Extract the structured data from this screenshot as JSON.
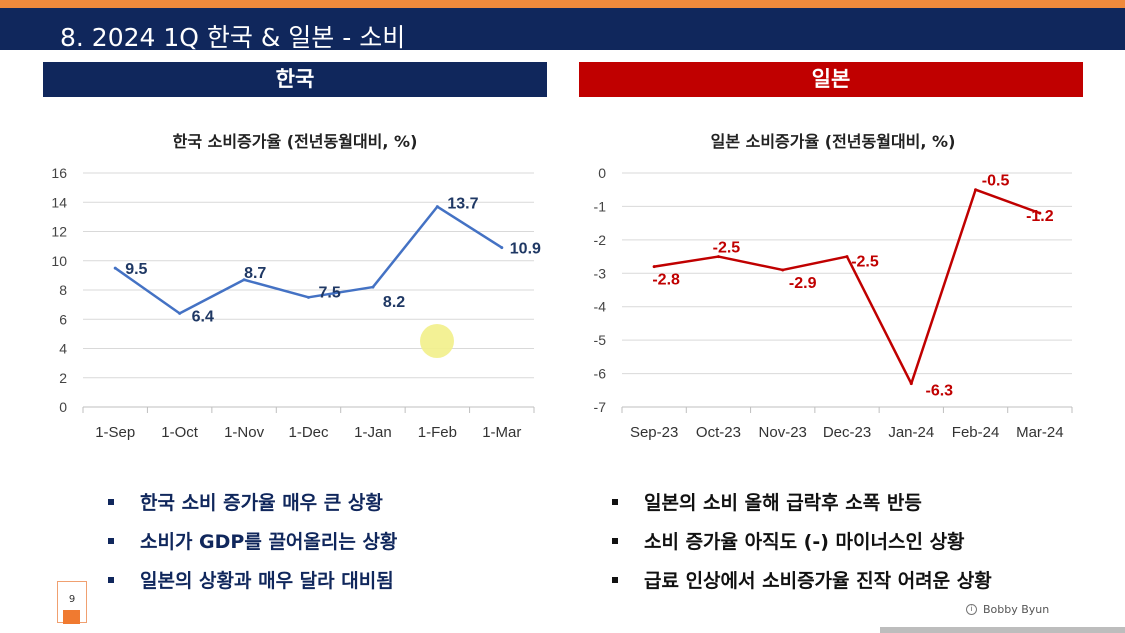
{
  "slide": {
    "title": "8.   2024 1Q 한국 & 일본 - 소비",
    "page_number": "9",
    "credit": "Bobby Byun",
    "colors": {
      "navy": "#10275c",
      "red": "#c00000",
      "orange": "#f08a3c",
      "korea_line": "#4472c4",
      "highlight": "#f2f08a"
    }
  },
  "korea": {
    "header": "한국",
    "bullets": [
      "한국 소비 증가율 매우 큰 상황",
      "소비가 GDP를 끌어올리는 상황",
      "일본의 상황과 매우 달라 대비됨"
    ]
  },
  "japan": {
    "header": "일본",
    "bullets": [
      "일본의 소비 올해 급락후 소폭 반등",
      "소비 증가율 아직도 (-) 마이너스인 상황",
      "급료 인상에서 소비증가율 진작 어려운 상황"
    ]
  },
  "chart_data": [
    {
      "type": "line",
      "title": "한국 소비증가율 (전년동월대비, %)",
      "categories": [
        "1-Sep",
        "1-Oct",
        "1-Nov",
        "1-Dec",
        "1-Jan",
        "1-Feb",
        "1-Mar"
      ],
      "values": [
        9.5,
        6.4,
        8.7,
        7.5,
        8.2,
        13.7,
        10.9
      ],
      "labels": [
        "9.5",
        "6.4",
        "8.7",
        "7.5",
        "8.2",
        "13.7",
        "10.9"
      ],
      "yticks": [
        "0",
        "2",
        "4",
        "6",
        "8",
        "10",
        "12",
        "14",
        "16"
      ],
      "ylim": [
        0,
        16
      ],
      "grid": true,
      "line_color": "#4472c4",
      "label_color": "#1f3864"
    },
    {
      "type": "line",
      "title": "일본 소비증가율 (전년동월대비, %)",
      "categories": [
        "Sep-23",
        "Oct-23",
        "Nov-23",
        "Dec-23",
        "Jan-24",
        "Feb-24",
        "Mar-24"
      ],
      "values": [
        -2.8,
        -2.5,
        -2.9,
        -2.5,
        -6.3,
        -0.5,
        -1.2
      ],
      "labels": [
        "-2.8",
        "-2.5",
        "-2.9",
        "-2.5",
        "-6.3",
        "-0.5",
        "-1.2"
      ],
      "yticks": [
        "-7",
        "-6",
        "-5",
        "-4",
        "-3",
        "-2",
        "-1",
        "0"
      ],
      "ylim": [
        -7,
        0
      ],
      "grid": true,
      "line_color": "#c00000",
      "label_color": "#c00000"
    }
  ]
}
